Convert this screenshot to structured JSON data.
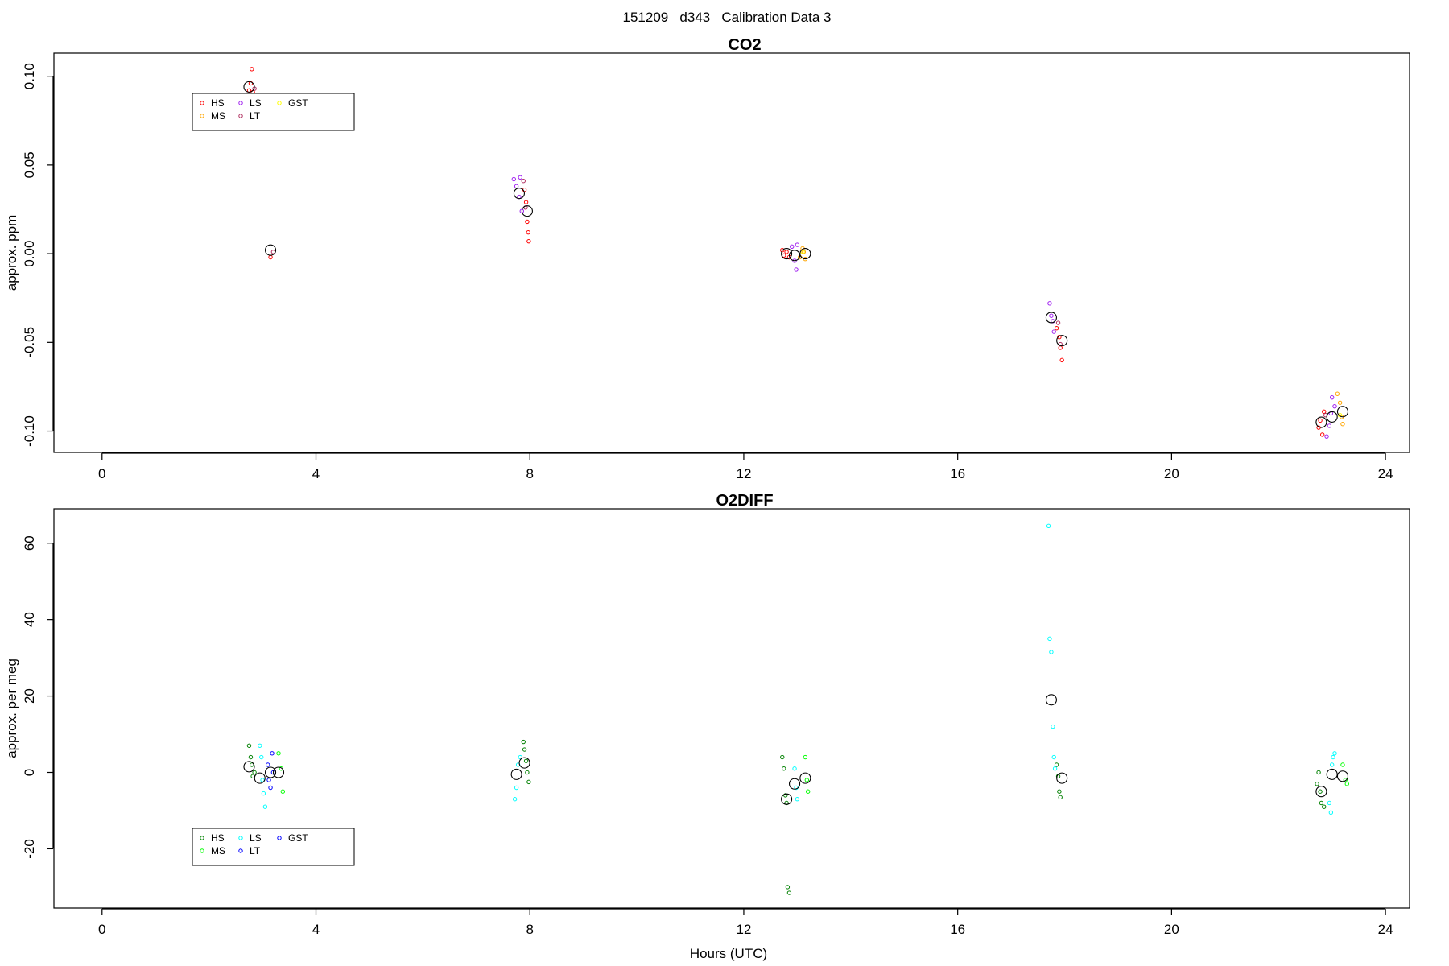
{
  "figure_title": "151209   d343   Calibration Data 3",
  "xlabel": "Hours (UTC)",
  "chart_data": [
    {
      "type": "scatter",
      "title": "CO2",
      "ylabel": "approx. ppm",
      "xlabel": "",
      "xlim": [
        -0.9,
        24.45
      ],
      "ylim": [
        -0.112,
        0.113
      ],
      "xticks": [
        0,
        4,
        8,
        12,
        16,
        20,
        24
      ],
      "xtick_labels": [
        "0",
        "4",
        "8",
        "12",
        "16",
        "20",
        "24"
      ],
      "yticks": [
        0.1,
        0.05,
        0.0,
        -0.05,
        -0.1
      ],
      "ytick_labels": [
        "0.10",
        "0.05",
        "0.00",
        "-0.05",
        "-0.10"
      ],
      "legend": {
        "placement": "top-left",
        "entries": [
          "HS",
          "MS",
          "LS",
          "LT",
          "GST"
        ]
      },
      "series": [
        {
          "name": "HS",
          "color": "#ff0000",
          "x": [
            2.75,
            2.78,
            2.8,
            2.82,
            3.15,
            7.9,
            7.93,
            7.95,
            7.97,
            7.98,
            12.72,
            12.75,
            12.8,
            12.85,
            17.85,
            17.9,
            17.92,
            17.95,
            22.75,
            22.78,
            22.82,
            22.85
          ],
          "y": [
            0.092,
            0.096,
            0.104,
            0.091,
            -0.002,
            0.036,
            0.029,
            0.018,
            0.012,
            0.007,
            0.002,
            -0.001,
            0.001,
            -0.002,
            -0.042,
            -0.047,
            -0.053,
            -0.06,
            -0.098,
            -0.094,
            -0.102,
            -0.089
          ]
        },
        {
          "name": "MS",
          "color": "#ffa500",
          "x": [
            13.05,
            13.1,
            13.12,
            13.15,
            23.1,
            23.15,
            23.18,
            23.2
          ],
          "y": [
            -0.002,
            0.003,
            0.001,
            -0.003,
            -0.079,
            -0.084,
            -0.092,
            -0.096
          ]
        },
        {
          "name": "LS",
          "color": "#a020f0",
          "x": [
            7.7,
            7.75,
            7.8,
            7.82,
            7.85,
            12.9,
            12.95,
            12.98,
            13.0,
            17.72,
            17.75,
            17.78,
            17.8,
            22.9,
            22.95,
            22.98,
            23.0,
            23.05
          ],
          "y": [
            0.042,
            0.038,
            0.032,
            0.043,
            0.024,
            0.004,
            -0.004,
            -0.009,
            0.005,
            -0.028,
            -0.035,
            -0.038,
            -0.044,
            -0.103,
            -0.097,
            -0.09,
            -0.081,
            -0.086
          ]
        },
        {
          "name": "LT",
          "color": "#b03060",
          "x": [
            2.85,
            3.2,
            7.88,
            7.92,
            17.88,
            17.92,
            22.88
          ],
          "y": [
            0.093,
            0.001,
            0.041,
            0.026,
            -0.039,
            -0.051,
            -0.091
          ]
        },
        {
          "name": "GST",
          "color": "#ffff00",
          "x": [
            13.1,
            23.15
          ],
          "y": [
            0.001,
            -0.091
          ]
        }
      ],
      "means": {
        "x": [
          2.75,
          3.15,
          7.8,
          7.95,
          12.8,
          12.95,
          13.15,
          17.75,
          17.95,
          22.8,
          23.0,
          23.2
        ],
        "y": [
          0.094,
          0.002,
          0.034,
          0.024,
          0.0,
          -0.001,
          0.0,
          -0.036,
          -0.049,
          -0.095,
          -0.092,
          -0.089
        ]
      }
    },
    {
      "type": "scatter",
      "title": "O2DIFF",
      "ylabel": "approx. per meg",
      "xlabel": "Hours (UTC)",
      "xlim": [
        -0.9,
        24.45
      ],
      "ylim": [
        -35.5,
        69
      ],
      "xticks": [
        0,
        4,
        8,
        12,
        16,
        20,
        24
      ],
      "xtick_labels": [
        "0",
        "4",
        "8",
        "12",
        "16",
        "20",
        "24"
      ],
      "yticks": [
        60,
        40,
        20,
        0,
        -20
      ],
      "ytick_labels": [
        "60",
        "40",
        "20",
        "0",
        "-20"
      ],
      "legend": {
        "placement": "bottom-left",
        "entries": [
          "HS",
          "MS",
          "LS",
          "LT",
          "GST"
        ]
      },
      "series": [
        {
          "name": "HS",
          "color": "#008000",
          "x": [
            2.75,
            2.78,
            2.8,
            2.82,
            2.85,
            7.88,
            7.9,
            7.93,
            7.95,
            7.98,
            12.72,
            12.75,
            12.78,
            12.8,
            12.82,
            12.85,
            17.85,
            17.88,
            17.9,
            17.92,
            22.72,
            22.75,
            22.78,
            22.8,
            22.85
          ],
          "y": [
            7,
            4,
            2,
            -1,
            0,
            8,
            6,
            3,
            0,
            -2.5,
            4,
            1,
            -6,
            -8,
            -30,
            -31.5,
            2,
            -1,
            -5,
            -6.5,
            -3,
            0,
            -5,
            -8,
            -9
          ]
        },
        {
          "name": "MS",
          "color": "#00ff00",
          "x": [
            3.3,
            3.35,
            3.38,
            13.15,
            13.18,
            13.2,
            23.2,
            23.25,
            23.28
          ],
          "y": [
            5,
            1,
            -5,
            4,
            -2,
            -5,
            2,
            -2,
            -3
          ]
        },
        {
          "name": "LS",
          "color": "#00ffff",
          "x": [
            2.95,
            2.98,
            3.0,
            3.02,
            3.05,
            7.72,
            7.75,
            7.78,
            7.82,
            12.95,
            12.98,
            13.0,
            17.7,
            17.72,
            17.75,
            17.78,
            17.8,
            17.82,
            22.95,
            22.98,
            23.0,
            23.02,
            23.05
          ],
          "y": [
            7,
            4,
            -2,
            -5.5,
            -9,
            -7,
            -4,
            2,
            4,
            1,
            -4,
            -7,
            64.5,
            35,
            31.5,
            12,
            4,
            1,
            -8,
            -10.5,
            2,
            4,
            5
          ]
        },
        {
          "name": "LT",
          "color": "#0000ff",
          "x": [
            3.1,
            3.12,
            3.15,
            3.18
          ],
          "y": [
            2,
            -2,
            -4,
            5
          ]
        },
        {
          "name": "GST",
          "color": "#0000ff",
          "x": [
            3.2
          ],
          "y": [
            0
          ]
        }
      ],
      "means": {
        "x": [
          2.75,
          2.95,
          3.15,
          3.3,
          7.75,
          7.9,
          12.8,
          12.95,
          13.15,
          17.75,
          17.95,
          22.8,
          23.0,
          23.2
        ],
        "y": [
          1.5,
          -1.5,
          0,
          0,
          -0.5,
          2.5,
          -7,
          -3,
          -1.5,
          19,
          -1.5,
          -5,
          -0.5,
          -1
        ]
      }
    }
  ]
}
